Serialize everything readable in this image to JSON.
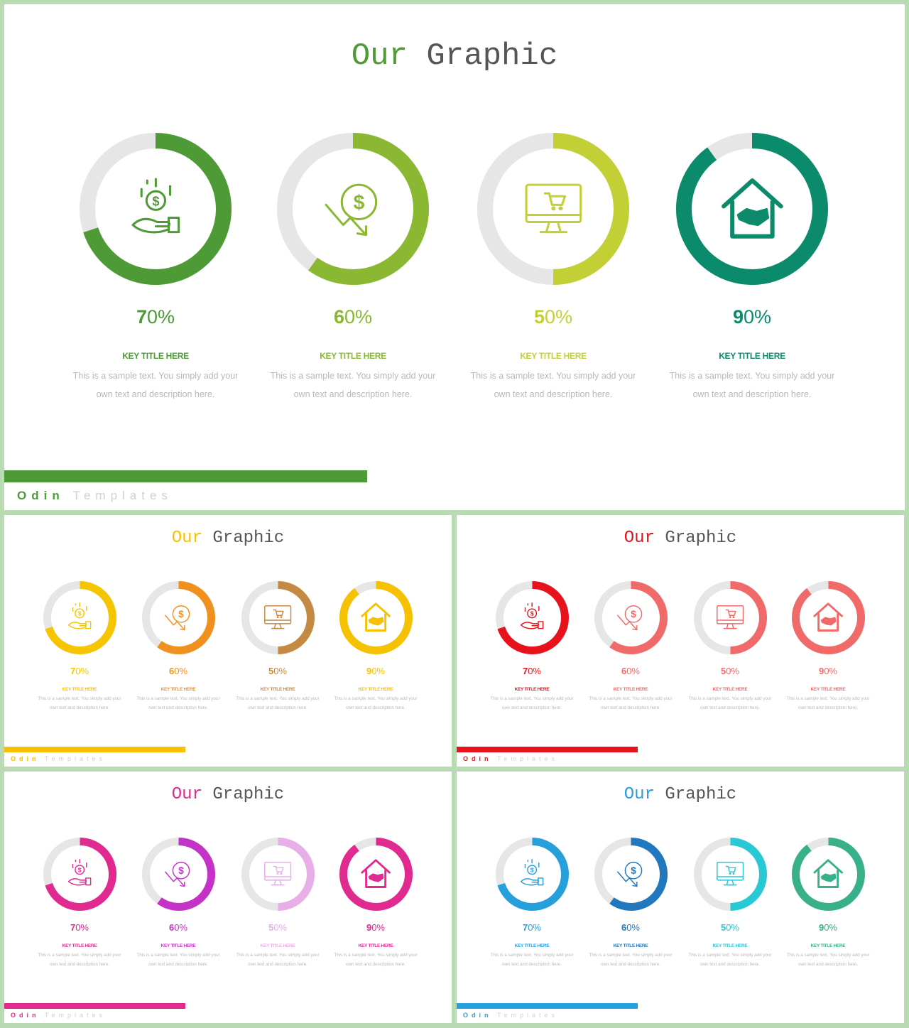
{
  "title_first": "Our",
  "title_rest": "Graphic",
  "brand_first": "Odin",
  "brand_rest": "Templates",
  "items": [
    {
      "percent_head": "7",
      "percent_tail": "0%",
      "value": 0.7,
      "key_title": "KEY TITLE HERE",
      "desc_line1": "This is a sample text. You simply add your",
      "desc_line2": "own text and description here.",
      "icon": "hand-coins-icon"
    },
    {
      "percent_head": "6",
      "percent_tail": "0%",
      "value": 0.6,
      "key_title": "KEY TITLE HERE",
      "desc_line1": "This is a sample text. You simply add your",
      "desc_line2": "own text and description here.",
      "icon": "dollar-decline-icon"
    },
    {
      "percent_head": "5",
      "percent_tail": "0%",
      "value": 0.5,
      "key_title": "KEY TITLE HERE",
      "desc_line1": "This is a sample text. You simply add your",
      "desc_line2": "own text and description here.",
      "icon": "monitor-cart-icon"
    },
    {
      "percent_head": "9",
      "percent_tail": "0%",
      "value": 0.9,
      "key_title": "KEY TITLE HERE",
      "desc_line1": "This is a sample text. You simply add your",
      "desc_line2": "own text and description here.",
      "icon": "house-handshake-icon"
    }
  ],
  "themes": [
    {
      "name": "green",
      "accent": "#4e9a36",
      "colors": [
        "#4e9a36",
        "#8ab832",
        "#c2d036",
        "#0c8b6c"
      ]
    },
    {
      "name": "yellow",
      "accent": "#f5c100",
      "colors": [
        "#f5c600",
        "#f0901e",
        "#c48a43",
        "#f5c100"
      ]
    },
    {
      "name": "red",
      "accent": "#e8121c",
      "colors": [
        "#e8121c",
        "#f06a6a",
        "#f06a6a",
        "#f06a6a"
      ]
    },
    {
      "name": "magenta",
      "accent": "#e02a90",
      "colors": [
        "#e02a90",
        "#c432c8",
        "#e8aee8",
        "#e02a90"
      ]
    },
    {
      "name": "blue",
      "accent": "#26a0dc",
      "colors": [
        "#26a0dc",
        "#2278be",
        "#28c8d4",
        "#38b08a"
      ]
    }
  ],
  "track_color": "#e6e6e6",
  "subtitle_color": "#555555"
}
